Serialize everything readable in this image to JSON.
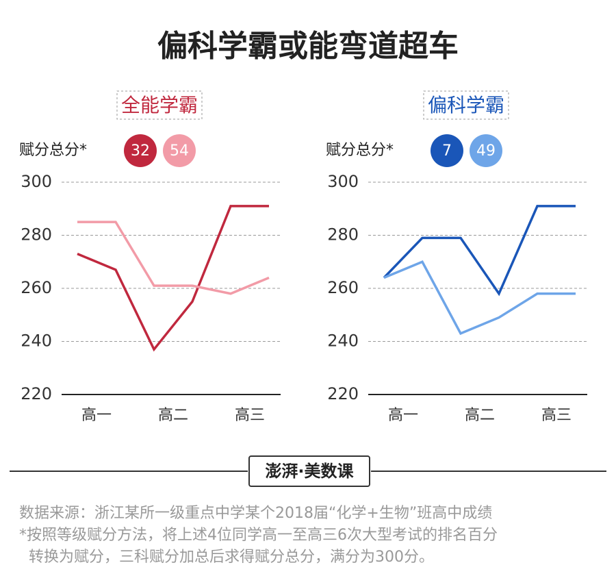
{
  "title": "偏科学霸或能弯道超车",
  "brand": "澎湃·美数课",
  "notes": [
    "数据来源：浙江某所一级重点中学某个2018届“化学+生物”班高中成绩",
    "*按照等级赋分方法，将上述4位同学高一至高三6次大型考试的排名百分",
    "转换为赋分，三科赋分加总后求得赋分总分，满分为300分。"
  ],
  "chart_data": [
    {
      "type": "line",
      "title": "全能学霸",
      "title_color": "#c0283e",
      "ylabel": "赋分总分*",
      "categories": [
        "高一",
        null,
        "高二",
        null,
        "高三",
        null
      ],
      "series": [
        {
          "name": "32",
          "color": "#c0283e",
          "values": [
            273,
            267,
            237,
            255,
            291,
            291
          ]
        },
        {
          "name": "54",
          "color": "#f29ba7",
          "values": [
            285,
            285,
            261,
            261,
            258,
            264
          ]
        }
      ],
      "ylim": [
        220,
        300
      ],
      "yticks": [
        220,
        240,
        260,
        280,
        300
      ],
      "grid": true
    },
    {
      "type": "line",
      "title": "偏科学霸",
      "title_color": "#1a56b8",
      "ylabel": "赋分总分*",
      "categories": [
        "高一",
        null,
        "高二",
        null,
        "高三",
        null
      ],
      "series": [
        {
          "name": "7",
          "color": "#1a56b8",
          "values": [
            264,
            279,
            279,
            258,
            291,
            291
          ]
        },
        {
          "name": "49",
          "color": "#6ea5e8",
          "values": [
            264,
            270,
            243,
            249,
            258,
            258
          ]
        }
      ],
      "ylim": [
        220,
        300
      ],
      "yticks": [
        220,
        240,
        260,
        280,
        300
      ],
      "grid": true
    }
  ]
}
